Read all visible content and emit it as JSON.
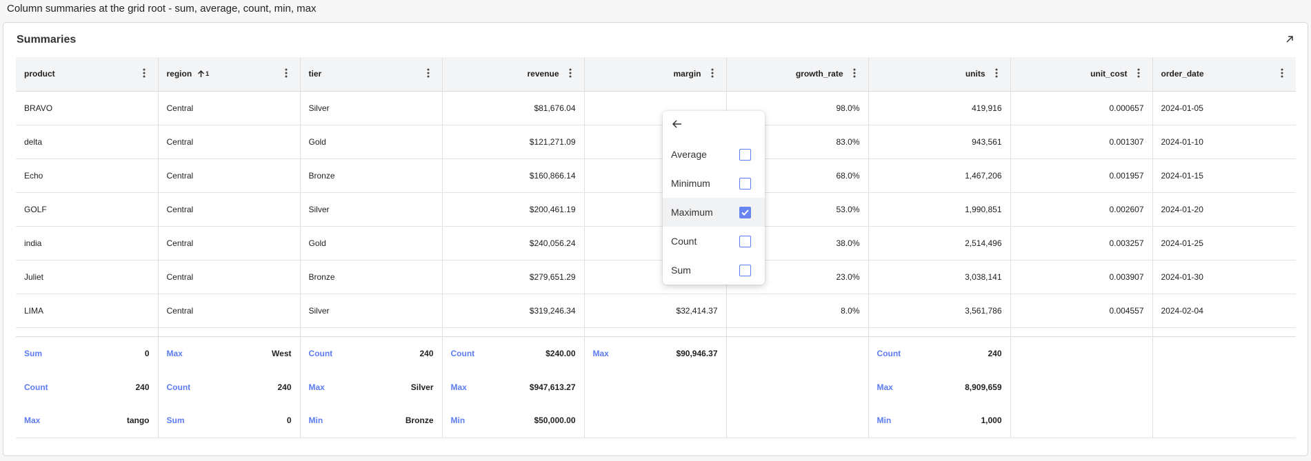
{
  "caption": "Column summaries at the grid root - sum, average, count, min, max",
  "card": {
    "title": "Summaries"
  },
  "columns": [
    {
      "label": "product",
      "align": "left"
    },
    {
      "label": "region",
      "align": "left",
      "sort_index": "1"
    },
    {
      "label": "tier",
      "align": "left"
    },
    {
      "label": "revenue",
      "align": "right"
    },
    {
      "label": "margin",
      "align": "right"
    },
    {
      "label": "growth_rate",
      "align": "right"
    },
    {
      "label": "units",
      "align": "right"
    },
    {
      "label": "unit_cost",
      "align": "right"
    },
    {
      "label": "order_date",
      "align": "left"
    }
  ],
  "rows": [
    [
      "BRAVO",
      "Central",
      "Silver",
      "$81,676.04",
      "",
      "98.0%",
      "419,916",
      "0.000657",
      "2024-01-05"
    ],
    [
      "delta",
      "Central",
      "Gold",
      "$121,271.09",
      "",
      "83.0%",
      "943,561",
      "0.001307",
      "2024-01-10"
    ],
    [
      "Echo",
      "Central",
      "Bronze",
      "$160,866.14",
      "",
      "68.0%",
      "1,467,206",
      "0.001957",
      "2024-01-15"
    ],
    [
      "GOLF",
      "Central",
      "Silver",
      "$200,461.19",
      "",
      "53.0%",
      "1,990,851",
      "0.002607",
      "2024-01-20"
    ],
    [
      "india",
      "Central",
      "Gold",
      "$240,056.24",
      "",
      "38.0%",
      "2,514,496",
      "0.003257",
      "2024-01-25"
    ],
    [
      "Juliet",
      "Central",
      "Bronze",
      "$279,651.29",
      "$14,559.37",
      "23.0%",
      "3,038,141",
      "0.003907",
      "2024-01-30"
    ],
    [
      "LIMA",
      "Central",
      "Silver",
      "$319,246.34",
      "$32,414.37",
      "8.0%",
      "3,561,786",
      "0.004557",
      "2024-02-04"
    ]
  ],
  "summaries": [
    [
      {
        "k": "Sum",
        "v": "0"
      },
      {
        "k": "Max",
        "v": "West"
      },
      {
        "k": "Count",
        "v": "240"
      },
      {
        "k": "Count",
        "v": "$240.00"
      },
      {
        "k": "Max",
        "v": "$90,946.37"
      },
      null,
      {
        "k": "Count",
        "v": "240"
      },
      null,
      null
    ],
    [
      {
        "k": "Count",
        "v": "240"
      },
      {
        "k": "Count",
        "v": "240"
      },
      {
        "k": "Max",
        "v": "Silver"
      },
      {
        "k": "Max",
        "v": "$947,613.27"
      },
      null,
      null,
      {
        "k": "Max",
        "v": "8,909,659"
      },
      null,
      null
    ],
    [
      {
        "k": "Max",
        "v": "tango"
      },
      {
        "k": "Sum",
        "v": "0"
      },
      {
        "k": "Min",
        "v": "Bronze"
      },
      {
        "k": "Min",
        "v": "$50,000.00"
      },
      null,
      null,
      {
        "k": "Min",
        "v": "1,000"
      },
      null,
      null
    ]
  ],
  "popup": {
    "options": [
      {
        "label": "Average",
        "checked": false
      },
      {
        "label": "Minimum",
        "checked": false
      },
      {
        "label": "Maximum",
        "checked": true
      },
      {
        "label": "Count",
        "checked": false
      },
      {
        "label": "Sum",
        "checked": false
      }
    ]
  },
  "colors": {
    "accent": "#5c7cf0",
    "checkbox_fill": "#6784f0"
  }
}
